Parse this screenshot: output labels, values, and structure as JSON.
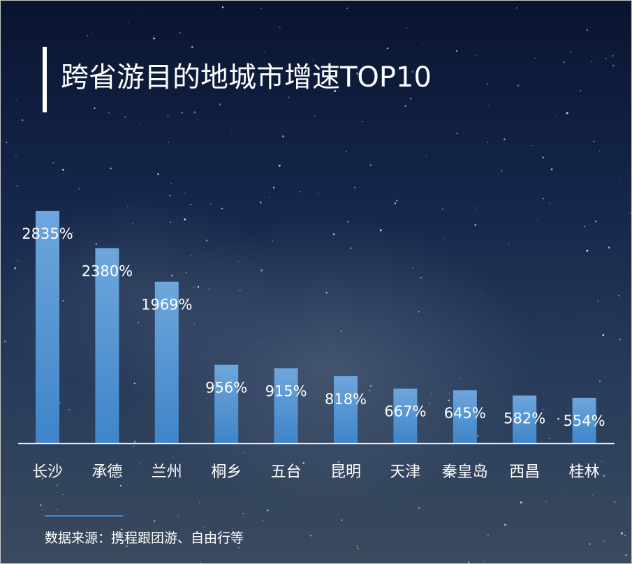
{
  "title": "跨省游目的地城市增速TOP10",
  "source": "数据来源：携程跟团游、自由行等",
  "colors": {
    "bar_top": "#6ea6dc",
    "bar_bottom": "#3f85c9",
    "text": "#ffffff",
    "axis": "#ffffff",
    "source_accent": "#3f8fd6"
  },
  "chart_data": {
    "type": "bar",
    "title": "跨省游目的地城市增速TOP10",
    "xlabel": "",
    "ylabel": "",
    "ylim": [
      0,
      3000
    ],
    "grid": false,
    "categories": [
      "长沙",
      "承德",
      "兰州",
      "桐乡",
      "五台",
      "昆明",
      "天津",
      "秦皇岛",
      "西昌",
      "桂林"
    ],
    "values": [
      2835,
      2380,
      1969,
      956,
      915,
      818,
      667,
      645,
      582,
      554
    ],
    "data_labels": [
      "2835%",
      "2380%",
      "1969%",
      "956%",
      "915%",
      "818%",
      "667%",
      "645%",
      "582%",
      "554%"
    ]
  }
}
